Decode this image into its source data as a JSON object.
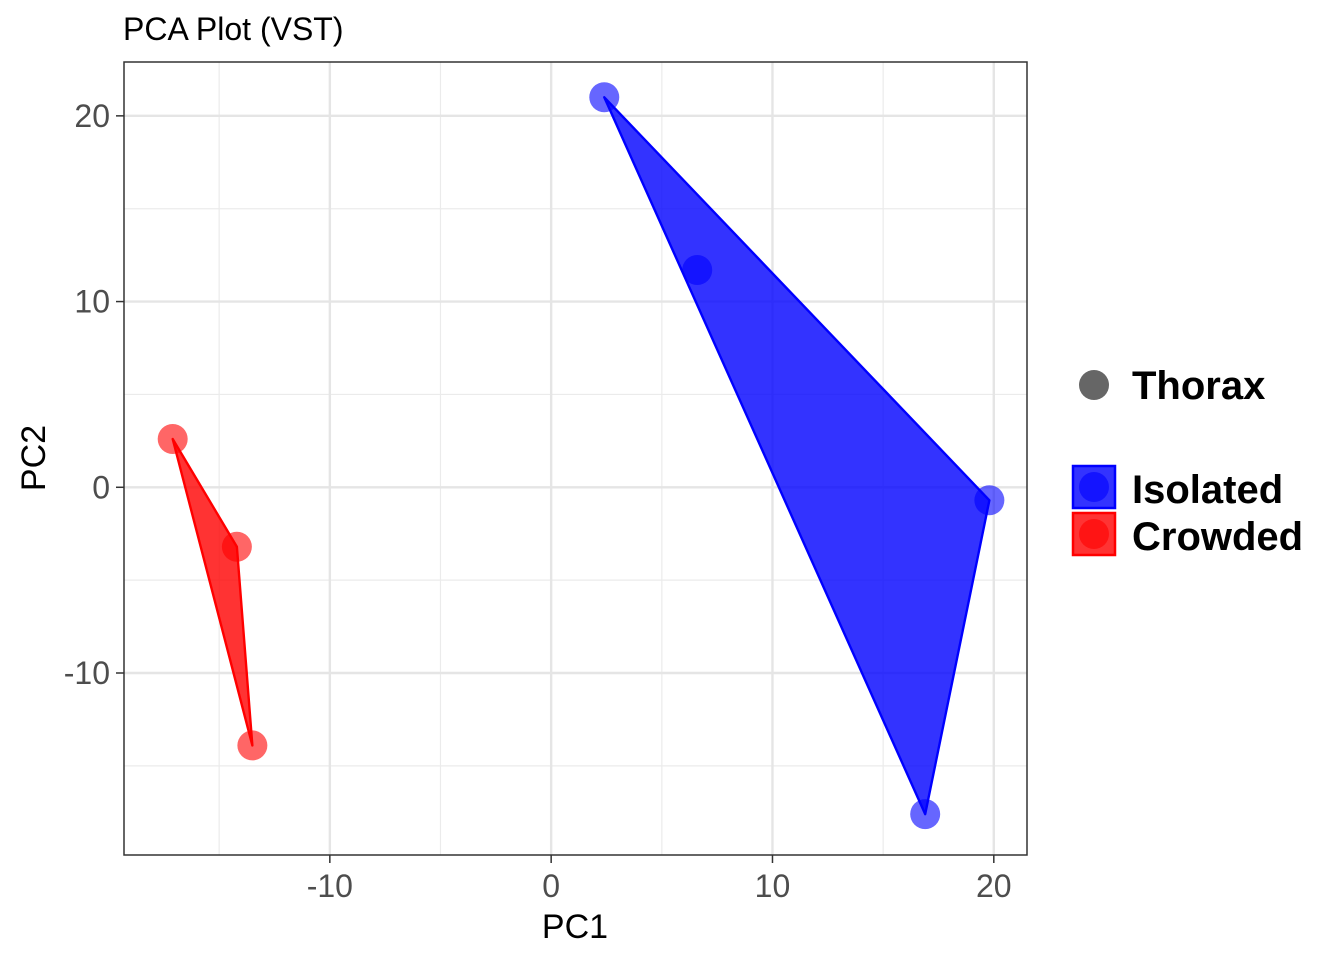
{
  "chart_data": {
    "type": "scatter",
    "title": "PCA Plot (VST)",
    "xlabel": "PC1",
    "ylabel": "PC2",
    "xlim": [
      -19.3,
      21.5
    ],
    "ylim": [
      -19.8,
      22.9
    ],
    "x_ticks": [
      -10,
      0,
      10,
      20
    ],
    "y_ticks": [
      -10,
      0,
      10,
      20
    ],
    "x_tick_labels": [
      "-10",
      "0",
      "10",
      "20"
    ],
    "y_tick_labels": [
      "-10",
      "0",
      "10",
      "20"
    ],
    "grid": true,
    "legend_position": "right",
    "shape_legend": {
      "label": "Thorax",
      "color": "#666666"
    },
    "series": [
      {
        "name": "Isolated",
        "color": "#0000ff",
        "hull": true,
        "x": [
          2.4,
          6.6,
          19.8,
          16.9
        ],
        "y": [
          21.0,
          11.7,
          -0.7,
          -17.6
        ]
      },
      {
        "name": "Crowded",
        "color": "#ff0000",
        "hull": true,
        "x": [
          -17.1,
          -14.2,
          -13.5
        ],
        "y": [
          2.6,
          -3.2,
          -13.9
        ]
      }
    ]
  }
}
